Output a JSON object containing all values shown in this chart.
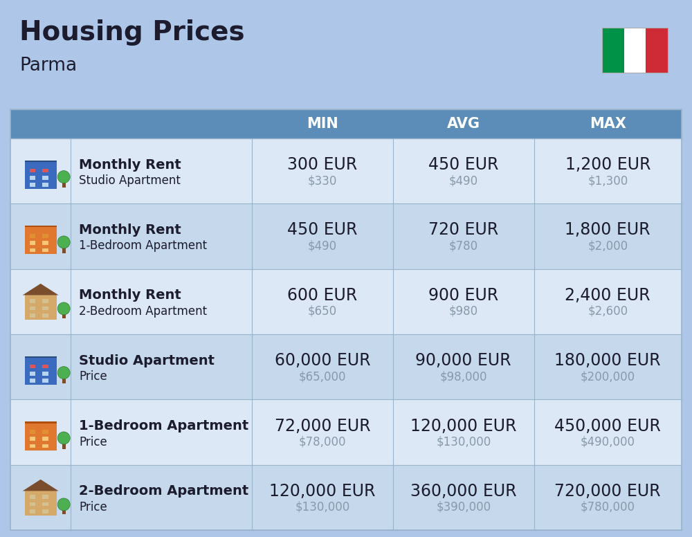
{
  "title": "Housing Prices",
  "subtitle": "Parma",
  "background_color": "#aec6e8",
  "header_bg_color": "#5b8db8",
  "header_text_color": "#ffffff",
  "row_bg_light": "#dce8f5",
  "row_bg_dark": "#c5d8ec",
  "col_headers": [
    "MIN",
    "AVG",
    "MAX"
  ],
  "rows": [
    {
      "icon_type": "studio_blue",
      "label_bold": "Monthly Rent",
      "label_light": "Studio Apartment",
      "min_eur": "300 EUR",
      "min_usd": "$330",
      "avg_eur": "450 EUR",
      "avg_usd": "$490",
      "max_eur": "1,200 EUR",
      "max_usd": "$1,300"
    },
    {
      "icon_type": "apt1_orange",
      "label_bold": "Monthly Rent",
      "label_light": "1-Bedroom Apartment",
      "min_eur": "450 EUR",
      "min_usd": "$490",
      "avg_eur": "720 EUR",
      "avg_usd": "$780",
      "max_eur": "1,800 EUR",
      "max_usd": "$2,000"
    },
    {
      "icon_type": "apt2_tan",
      "label_bold": "Monthly Rent",
      "label_light": "2-Bedroom Apartment",
      "min_eur": "600 EUR",
      "min_usd": "$650",
      "avg_eur": "900 EUR",
      "avg_usd": "$980",
      "max_eur": "2,400 EUR",
      "max_usd": "$2,600"
    },
    {
      "icon_type": "studio_blue",
      "label_bold": "Studio Apartment",
      "label_light": "Price",
      "min_eur": "60,000 EUR",
      "min_usd": "$65,000",
      "avg_eur": "90,000 EUR",
      "avg_usd": "$98,000",
      "max_eur": "180,000 EUR",
      "max_usd": "$200,000"
    },
    {
      "icon_type": "apt1_orange",
      "label_bold": "1-Bedroom Apartment",
      "label_light": "Price",
      "min_eur": "72,000 EUR",
      "min_usd": "$78,000",
      "avg_eur": "120,000 EUR",
      "avg_usd": "$130,000",
      "max_eur": "450,000 EUR",
      "max_usd": "$490,000"
    },
    {
      "icon_type": "apt2_tan",
      "label_bold": "2-Bedroom Apartment",
      "label_light": "Price",
      "min_eur": "120,000 EUR",
      "min_usd": "$130,000",
      "avg_eur": "360,000 EUR",
      "avg_usd": "$390,000",
      "max_eur": "720,000 EUR",
      "max_usd": "$780,000"
    }
  ],
  "divider_color": "#9ab4cc",
  "text_dark": "#1c1c2e",
  "text_gray": "#8899aa",
  "title_fontsize": 28,
  "subtitle_fontsize": 19,
  "header_fontsize": 15,
  "eur_fontsize": 17,
  "usd_fontsize": 12,
  "label_bold_fontsize": 14,
  "label_light_fontsize": 12
}
